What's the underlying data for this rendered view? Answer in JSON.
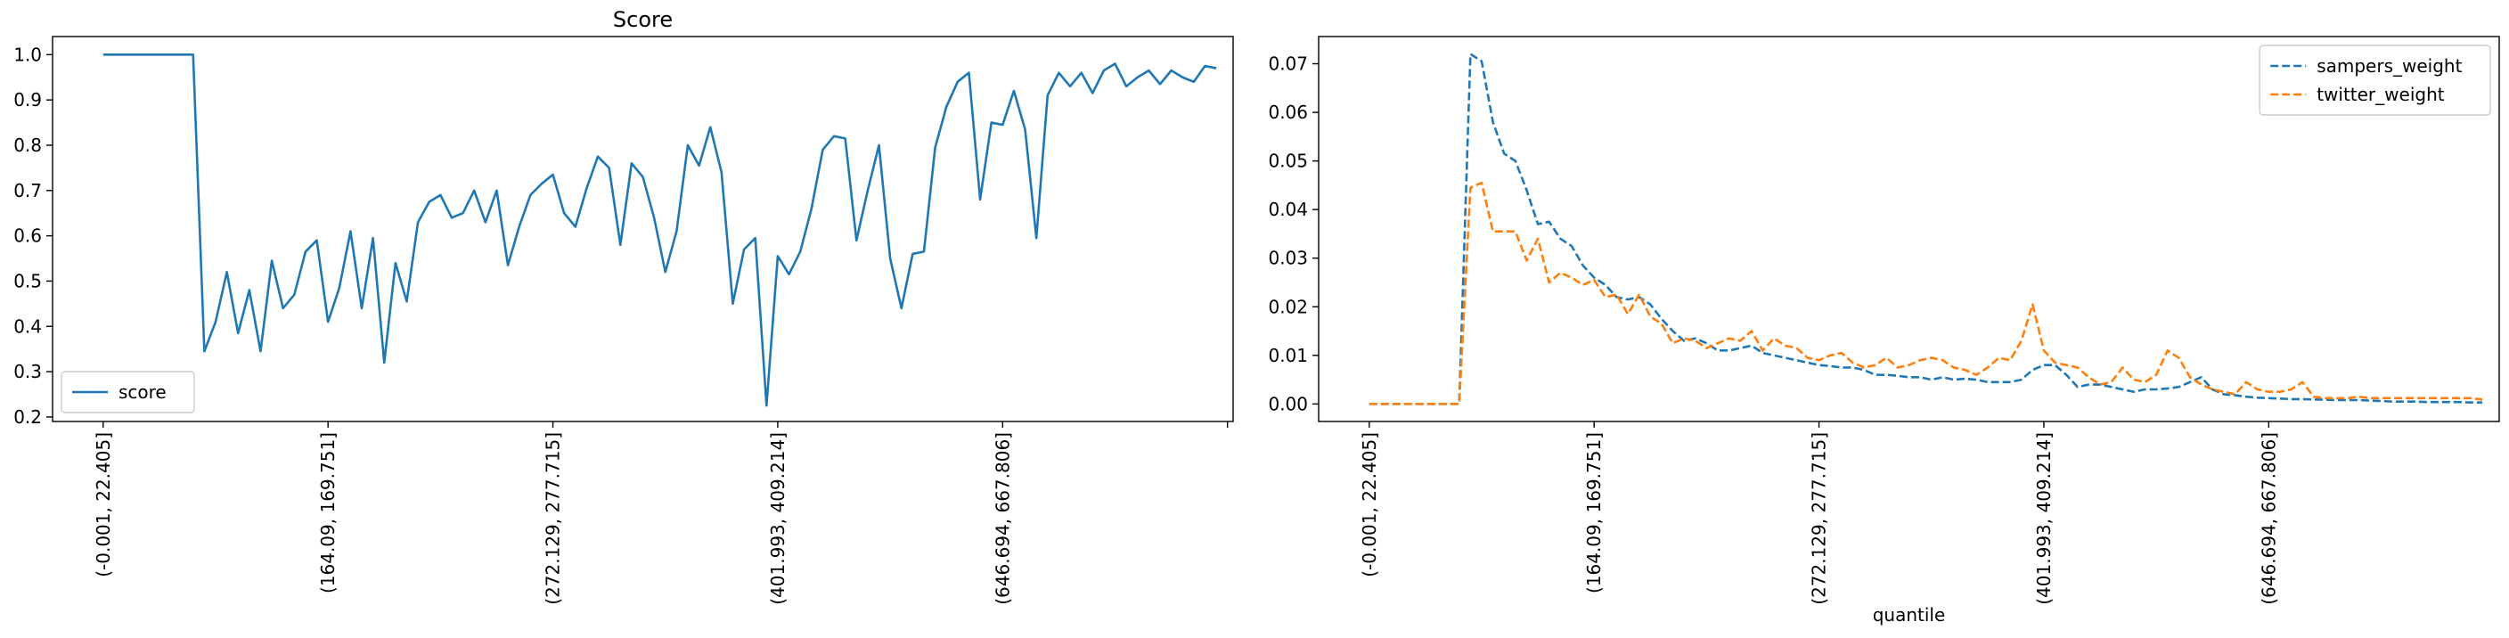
{
  "chart_data": [
    {
      "type": "line",
      "title": "Score",
      "xlabel": "",
      "ylabel": "",
      "ylim": [
        0.19,
        1.04
      ],
      "xlim": [
        -4.5,
        100.5
      ],
      "yticks": [
        0.2,
        0.3,
        0.4,
        0.5,
        0.6,
        0.7,
        0.8,
        0.9,
        1.0
      ],
      "ytick_labels": [
        "0.2",
        "0.3",
        "0.4",
        "0.5",
        "0.6",
        "0.7",
        "0.8",
        "0.9",
        "1.0"
      ],
      "xticks": [
        0,
        20,
        40,
        60,
        80,
        100
      ],
      "xtick_labels": [
        "(-0.001, 22.405]",
        "(164.09, 169.751]",
        "(272.129, 277.715]",
        "(401.993, 409.214]",
        "(646.694, 667.806]",
        ""
      ],
      "grid": false,
      "legend": "lower-left",
      "series": [
        {
          "name": "score",
          "color": "#1f77b4",
          "dash": "solid",
          "values": [
            1.0,
            1.0,
            1.0,
            1.0,
            1.0,
            1.0,
            1.0,
            1.0,
            1.0,
            0.345,
            0.41,
            0.52,
            0.385,
            0.48,
            0.345,
            0.545,
            0.44,
            0.47,
            0.565,
            0.59,
            0.41,
            0.485,
            0.61,
            0.44,
            0.595,
            0.32,
            0.54,
            0.455,
            0.63,
            0.675,
            0.69,
            0.64,
            0.65,
            0.7,
            0.63,
            0.7,
            0.535,
            0.62,
            0.69,
            0.715,
            0.735,
            0.65,
            0.62,
            0.705,
            0.775,
            0.75,
            0.58,
            0.76,
            0.73,
            0.64,
            0.52,
            0.61,
            0.8,
            0.755,
            0.84,
            0.74,
            0.45,
            0.57,
            0.595,
            0.225,
            0.555,
            0.515,
            0.565,
            0.66,
            0.79,
            0.82,
            0.815,
            0.59,
            0.7,
            0.8,
            0.55,
            0.44,
            0.56,
            0.565,
            0.795,
            0.885,
            0.94,
            0.96,
            0.68,
            0.85,
            0.845,
            0.92,
            0.835,
            0.595,
            0.91,
            0.96,
            0.93,
            0.96,
            0.915,
            0.965,
            0.98,
            0.93,
            0.95,
            0.965,
            0.935,
            0.965,
            0.95,
            0.94,
            0.975,
            0.97
          ]
        }
      ]
    },
    {
      "type": "line",
      "title": "",
      "xlabel": "quantile",
      "ylabel": "",
      "ylim": [
        -0.0036,
        0.0756
      ],
      "xlim": [
        -4.5,
        100.5
      ],
      "yticks": [
        0,
        0.01,
        0.02,
        0.03,
        0.04,
        0.05,
        0.06,
        0.07
      ],
      "ytick_labels": [
        "0.00",
        "0.01",
        "0.02",
        "0.03",
        "0.04",
        "0.05",
        "0.06",
        "0.07"
      ],
      "xticks": [
        0,
        20,
        40,
        60,
        80
      ],
      "xtick_labels": [
        "(-0.001, 22.405]",
        "(164.09, 169.751]",
        "(272.129, 277.715]",
        "(401.993, 409.214]",
        "(646.694, 667.806]"
      ],
      "grid": false,
      "legend": "upper-right",
      "series": [
        {
          "name": "sampers_weight",
          "color": "#1f77b4",
          "dash": "dashed",
          "values": [
            0,
            0,
            0,
            0,
            0,
            0,
            0,
            0,
            0,
            0.072,
            0.0705,
            0.058,
            0.0515,
            0.05,
            0.044,
            0.037,
            0.0375,
            0.034,
            0.0325,
            0.0285,
            0.026,
            0.0245,
            0.022,
            0.0215,
            0.022,
            0.0205,
            0.0175,
            0.015,
            0.013,
            0.0135,
            0.0125,
            0.011,
            0.011,
            0.0115,
            0.012,
            0.0105,
            0.01,
            0.0095,
            0.009,
            0.0085,
            0.008,
            0.0078,
            0.0075,
            0.0075,
            0.007,
            0.006,
            0.006,
            0.0058,
            0.0055,
            0.0055,
            0.005,
            0.0055,
            0.005,
            0.0052,
            0.005,
            0.0045,
            0.0045,
            0.0045,
            0.005,
            0.007,
            0.008,
            0.008,
            0.006,
            0.0035,
            0.004,
            0.004,
            0.0035,
            0.003,
            0.0025,
            0.003,
            0.003,
            0.0032,
            0.0035,
            0.0045,
            0.0055,
            0.003,
            0.002,
            0.0018,
            0.0015,
            0.0013,
            0.0012,
            0.0011,
            0.001,
            0.001,
            0.0009,
            0.0009,
            0.0008,
            0.0008,
            0.0008,
            0.0007,
            0.0006,
            0.0005,
            0.0005,
            0.0005,
            0.0004,
            0.0004,
            0.0004,
            0.0004,
            0.0003,
            0.0003
          ]
        },
        {
          "name": "twitter_weight",
          "color": "#ff7f0e",
          "dash": "dashed",
          "values": [
            0,
            0,
            0,
            0,
            0,
            0,
            0,
            0,
            0,
            0.0445,
            0.0455,
            0.0355,
            0.0355,
            0.0355,
            0.0295,
            0.034,
            0.025,
            0.027,
            0.026,
            0.0245,
            0.0255,
            0.022,
            0.0225,
            0.0185,
            0.0225,
            0.018,
            0.0165,
            0.0125,
            0.0135,
            0.013,
            0.0115,
            0.0125,
            0.0135,
            0.013,
            0.015,
            0.011,
            0.0135,
            0.012,
            0.0115,
            0.0095,
            0.009,
            0.01,
            0.0105,
            0.0085,
            0.0075,
            0.008,
            0.0095,
            0.0075,
            0.008,
            0.009,
            0.0095,
            0.009,
            0.0075,
            0.007,
            0.006,
            0.0075,
            0.0095,
            0.009,
            0.013,
            0.0205,
            0.011,
            0.0085,
            0.008,
            0.0075,
            0.0055,
            0.004,
            0.0045,
            0.0075,
            0.005,
            0.0045,
            0.006,
            0.011,
            0.0095,
            0.0055,
            0.004,
            0.003,
            0.0025,
            0.002,
            0.0045,
            0.003,
            0.0025,
            0.0025,
            0.003,
            0.0045,
            0.0015,
            0.0012,
            0.0012,
            0.0012,
            0.0015,
            0.0012,
            0.0012,
            0.0012,
            0.0012,
            0.0012,
            0.0012,
            0.0012,
            0.0012,
            0.0012,
            0.0012,
            0.0009
          ]
        }
      ]
    }
  ]
}
